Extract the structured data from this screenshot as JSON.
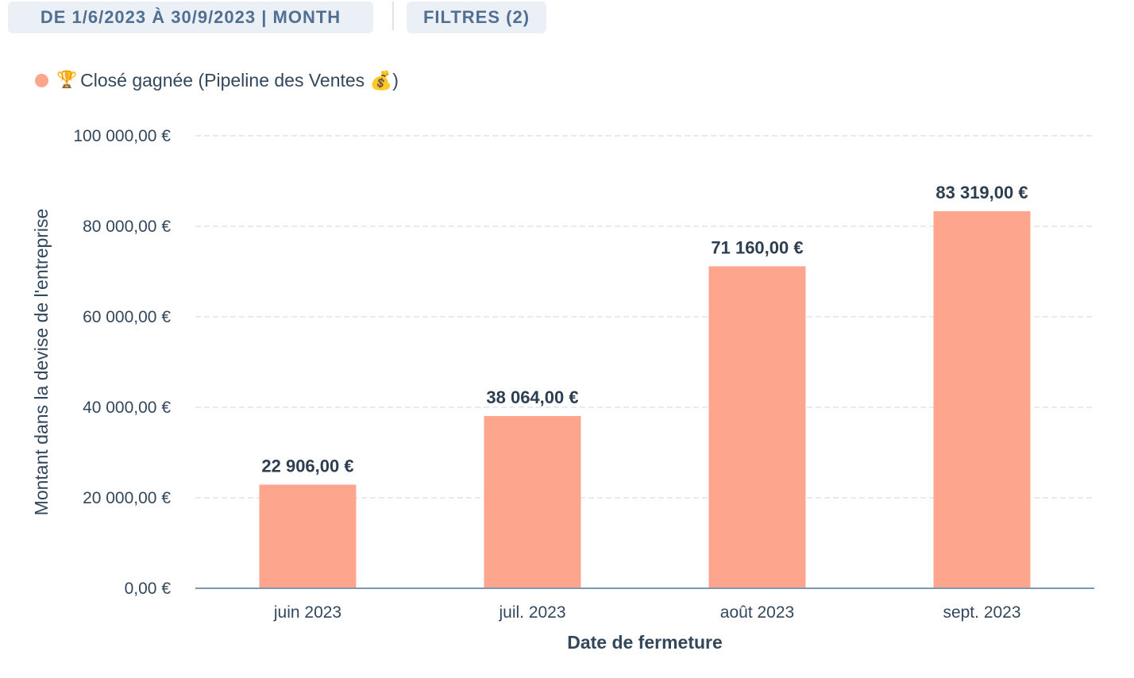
{
  "filters": {
    "date_range_label": "DE 1/6/2023 À 30/9/2023 | MONTH",
    "filters_label": "FILTRES (2)"
  },
  "legend": {
    "icon": "🏆",
    "label": "Closé gagnée (Pipeline des Ventes 💰)",
    "color": "#fea58e"
  },
  "chart_data": {
    "type": "bar",
    "categories": [
      "juin 2023",
      "juil. 2023",
      "août 2023",
      "sept. 2023"
    ],
    "series": [
      {
        "name": "🏆 Closé gagnée (Pipeline des Ventes 💰)",
        "values": [
          22906,
          38064,
          71160,
          83319
        ],
        "value_labels": [
          "22 906,00 €",
          "38 064,00 €",
          "71 160,00 €",
          "83 319,00 €"
        ],
        "color": "#fea58e"
      }
    ],
    "ylim": [
      0,
      100000
    ],
    "yticks": [
      0,
      20000,
      40000,
      60000,
      80000,
      100000
    ],
    "ytick_labels": [
      "0,00 €",
      "20 000,00 €",
      "40 000,00 €",
      "60 000,00 €",
      "80 000,00 €",
      "100 000,00 €"
    ],
    "xlabel": "Date de fermeture",
    "ylabel": "Montant dans la devise de l'entreprise",
    "grid": true,
    "legend_position": "top-left"
  }
}
